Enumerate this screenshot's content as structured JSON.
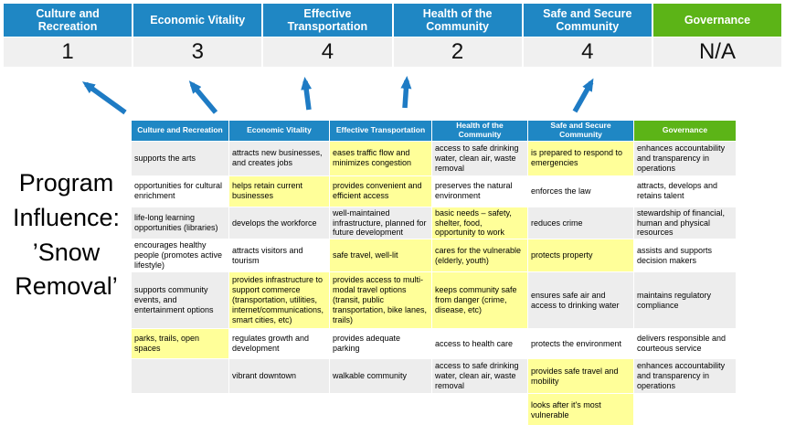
{
  "colors": {
    "category_blue": "#1F87C4",
    "governance_green": "#5CB417",
    "score_bg": "#F0F0F0",
    "stripe_gray": "#EDEDED",
    "highlight_yellow": "#FFFF99",
    "arrow_blue": "#1E7BC4"
  },
  "title": "Program\nInfluence:\n’Snow\nRemoval’",
  "scoreboard": {
    "columns": [
      {
        "label": "Culture and Recreation",
        "score": "1",
        "color": "blue"
      },
      {
        "label": "Economic Vitality",
        "score": "3",
        "color": "blue"
      },
      {
        "label": "Effective Transportation",
        "score": "4",
        "color": "blue"
      },
      {
        "label": "Health of the Community",
        "score": "2",
        "color": "blue"
      },
      {
        "label": "Safe and Secure Community",
        "score": "4",
        "color": "blue"
      },
      {
        "label": "Governance",
        "score": "N/A",
        "color": "green"
      }
    ]
  },
  "matrix": {
    "headers": [
      {
        "label": "Culture and Recreation",
        "color": "blue"
      },
      {
        "label": "Economic Vitality",
        "color": "blue"
      },
      {
        "label": "Effective Transportation",
        "color": "blue"
      },
      {
        "label": "Health of the Community",
        "color": "blue"
      },
      {
        "label": "Safe and Secure Community",
        "color": "blue"
      },
      {
        "label": "Governance",
        "color": "green"
      }
    ],
    "rows": [
      {
        "cells": [
          {
            "text": "supports the arts"
          },
          {
            "text": "attracts new businesses, and creates jobs"
          },
          {
            "text": "eases traffic flow and minimizes congestion",
            "hl": true
          },
          {
            "text": "access to safe drinking water, clean air, waste removal"
          },
          {
            "text": "is prepared to respond to emergencies",
            "hl": true
          },
          {
            "text": "enhances accountability and transparency in operations"
          }
        ]
      },
      {
        "cells": [
          {
            "text": "opportunities for cultural enrichment"
          },
          {
            "text": "helps retain current businesses",
            "hl": true
          },
          {
            "text": "provides convenient and efficient access",
            "hl": true
          },
          {
            "text": "preserves the natural environment"
          },
          {
            "text": "enforces the law"
          },
          {
            "text": "attracts, develops and retains talent"
          }
        ]
      },
      {
        "cells": [
          {
            "text": "life-long learning opportunities (libraries)"
          },
          {
            "text": "develops the workforce"
          },
          {
            "text": "well-maintained infrastructure, planned for future development"
          },
          {
            "text": "basic needs – safety, shelter, food, opportunity to work",
            "hl": true
          },
          {
            "text": "reduces crime"
          },
          {
            "text": "stewardship of financial, human and physical resources"
          }
        ]
      },
      {
        "cells": [
          {
            "text": "encourages healthy people (promotes active lifestyle)"
          },
          {
            "text": "attracts visitors and tourism"
          },
          {
            "text": "safe travel, well-lit",
            "hl": true
          },
          {
            "text": "cares for the vulnerable (elderly, youth)",
            "hl": true
          },
          {
            "text": "protects property",
            "hl": true
          },
          {
            "text": "assists and supports decision makers"
          }
        ]
      },
      {
        "cells": [
          {
            "text": "supports community events, and entertainment options"
          },
          {
            "text": "provides infrastructure to support commerce (transportation, utilities, internet/communications, smart cities, etc)",
            "hl": true
          },
          {
            "text": "provides access to multi-modal travel options (transit, public transportation, bike lanes, trails)",
            "hl": true
          },
          {
            "text": "keeps community safe from danger (crime, disease, etc)",
            "hl": true
          },
          {
            "text": "ensures safe air and access to drinking water"
          },
          {
            "text": "maintains regulatory compliance"
          }
        ]
      },
      {
        "cells": [
          {
            "text": "parks, trails, open spaces",
            "hl": true
          },
          {
            "text": "regulates growth and development"
          },
          {
            "text": "provides adequate parking"
          },
          {
            "text": "access to health care"
          },
          {
            "text": "protects the environment"
          },
          {
            "text": "delivers responsible and courteous service"
          }
        ]
      },
      {
        "cells": [
          {
            "text": ""
          },
          {
            "text": "vibrant downtown"
          },
          {
            "text": "walkable community"
          },
          {
            "text": "access to safe drinking water, clean air, waste removal"
          },
          {
            "text": "provides safe travel and mobility",
            "hl": true
          },
          {
            "text": "enhances accountability and transparency in operations"
          }
        ]
      },
      {
        "cells": [
          {
            "text": ""
          },
          {
            "text": ""
          },
          {
            "text": ""
          },
          {
            "text": ""
          },
          {
            "text": "looks after it's most vulnerable",
            "hl": true
          },
          {
            "text": ""
          }
        ]
      }
    ]
  }
}
